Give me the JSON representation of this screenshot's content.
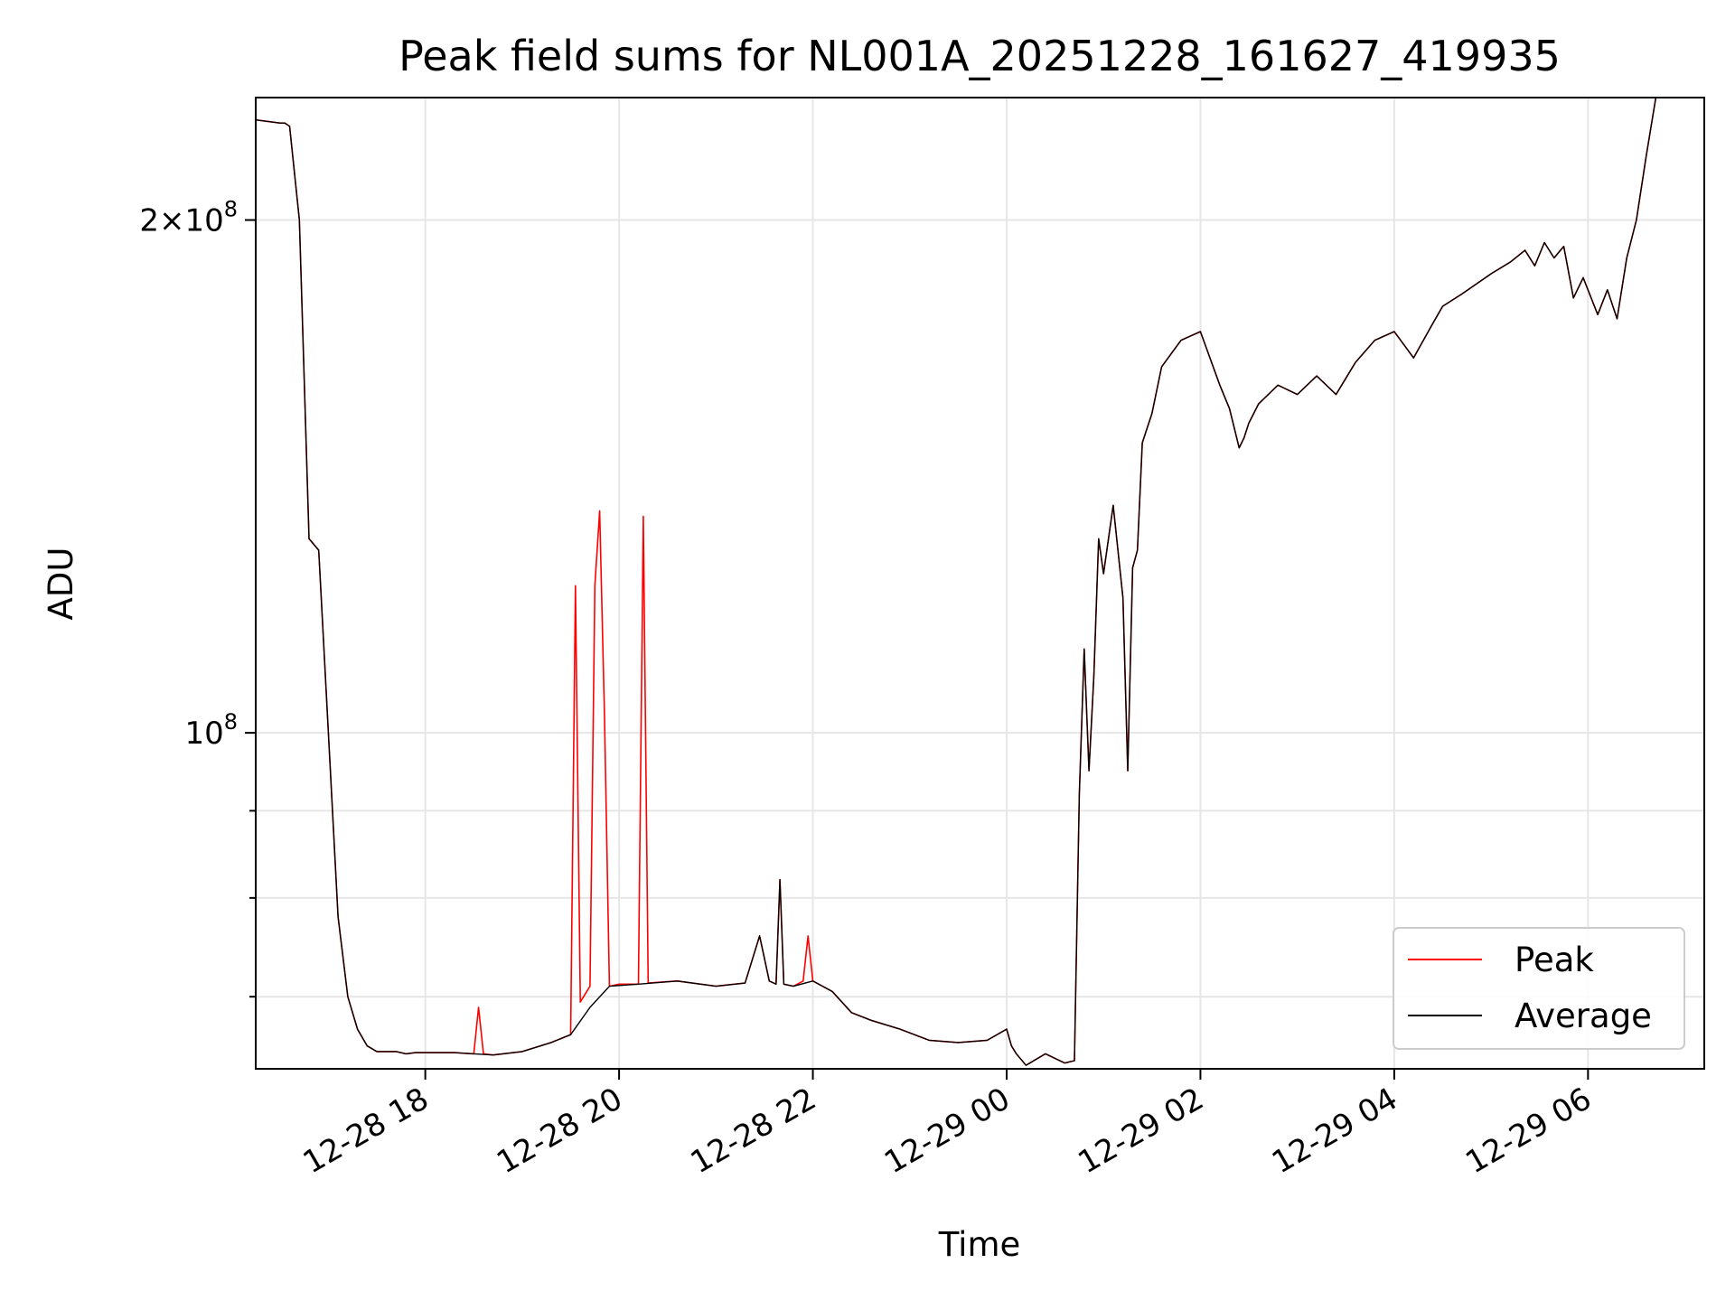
{
  "chart_data": {
    "type": "line",
    "title": "Peak field sums for NL001A_20251228_161627_419935",
    "xlabel": "Time",
    "ylabel": "ADU",
    "yscale": "log",
    "grid": true,
    "legend_position": "lower-right",
    "xlim": [
      16.25,
      31.2
    ],
    "ylim": [
      63500000,
      236000000
    ],
    "x_ticks": [
      {
        "value": 18,
        "label": "12-28 18"
      },
      {
        "value": 20,
        "label": "12-28 20"
      },
      {
        "value": 22,
        "label": "12-28 22"
      },
      {
        "value": 24,
        "label": "12-29 00"
      },
      {
        "value": 26,
        "label": "12-29 02"
      },
      {
        "value": 28,
        "label": "12-29 04"
      },
      {
        "value": 30,
        "label": "12-29 06"
      }
    ],
    "y_ticks": [
      {
        "value": 100000000,
        "base": "10",
        "exp": "8",
        "coef": ""
      },
      {
        "value": 200000000,
        "base": "10",
        "exp": "8",
        "coef": "2×"
      }
    ],
    "y_minor_ticks": [
      70000000,
      80000000,
      90000000
    ],
    "series": [
      {
        "name": "Average",
        "color": "#000000",
        "x": [
          16.25,
          16.5,
          16.55,
          16.6,
          16.7,
          16.8,
          16.9,
          17.0,
          17.1,
          17.2,
          17.3,
          17.4,
          17.5,
          17.6,
          17.7,
          17.8,
          17.9,
          18.1,
          18.3,
          18.5,
          18.7,
          19.0,
          19.3,
          19.5,
          19.7,
          19.9,
          20.2,
          20.6,
          21.0,
          21.3,
          21.45,
          21.55,
          21.62,
          21.66,
          21.7,
          21.8,
          22.0,
          22.2,
          22.4,
          22.6,
          22.9,
          23.2,
          23.5,
          23.8,
          24.0,
          24.05,
          24.1,
          24.2,
          24.4,
          24.6,
          24.7,
          24.75,
          24.8,
          24.85,
          24.9,
          24.95,
          25.0,
          25.1,
          25.2,
          25.25,
          25.3,
          25.35,
          25.4,
          25.5,
          25.6,
          25.8,
          26.0,
          26.2,
          26.3,
          26.4,
          26.45,
          26.5,
          26.6,
          26.8,
          27.0,
          27.2,
          27.4,
          27.6,
          27.8,
          28.0,
          28.2,
          28.4,
          28.5,
          28.7,
          29.0,
          29.2,
          29.35,
          29.45,
          29.55,
          29.65,
          29.75,
          29.85,
          29.95,
          30.1,
          30.2,
          30.3,
          30.4,
          30.5,
          30.6,
          30.7,
          30.8,
          30.9
        ],
        "values": [
          229000000,
          228000000,
          228000000,
          227000000,
          200000000,
          130000000,
          128000000,
          100000000,
          78000000,
          70000000,
          67000000,
          65500000,
          65000000,
          65000000,
          65000000,
          64800000,
          64900000,
          64900000,
          64900000,
          64800000,
          64700000,
          65000000,
          65800000,
          66500000,
          69000000,
          71000000,
          71200000,
          71500000,
          71000000,
          71300000,
          76000000,
          71500000,
          71200000,
          82000000,
          71200000,
          71000000,
          71500000,
          70500000,
          68500000,
          67800000,
          67000000,
          66000000,
          65800000,
          66000000,
          67000000,
          65500000,
          64800000,
          63800000,
          64800000,
          64000000,
          64200000,
          92000000,
          112000000,
          95000000,
          108000000,
          130000000,
          124000000,
          136000000,
          120000000,
          95000000,
          125000000,
          128000000,
          148000000,
          154000000,
          164000000,
          170000000,
          172000000,
          160000000,
          155000000,
          147000000,
          149000000,
          152000000,
          156000000,
          160000000,
          158000000,
          162000000,
          158000000,
          165000000,
          170000000,
          172000000,
          166000000,
          174000000,
          178000000,
          181000000,
          186000000,
          189000000,
          192000000,
          188000000,
          194000000,
          190000000,
          193000000,
          180000000,
          185000000,
          176000000,
          182000000,
          175000000,
          190000000,
          200000000,
          218000000,
          236000000,
          236000000,
          236000000
        ]
      },
      {
        "name": "Peak",
        "color": "#ff0000",
        "x": [
          16.25,
          16.5,
          16.55,
          16.6,
          16.7,
          16.8,
          16.9,
          17.0,
          17.1,
          17.2,
          17.3,
          17.4,
          17.5,
          17.6,
          17.7,
          17.8,
          17.9,
          18.1,
          18.3,
          18.5,
          18.55,
          18.6,
          18.7,
          19.0,
          19.3,
          19.5,
          19.55,
          19.6,
          19.7,
          19.75,
          19.8,
          19.85,
          19.9,
          20.0,
          20.2,
          20.25,
          20.3,
          20.6,
          21.0,
          21.3,
          21.45,
          21.55,
          21.62,
          21.66,
          21.7,
          21.8,
          21.9,
          21.95,
          22.0,
          22.2,
          22.4,
          22.6,
          22.9,
          23.2,
          23.5,
          23.8,
          24.0,
          24.05,
          24.1,
          24.2,
          24.4,
          24.6,
          24.7,
          24.75,
          24.8,
          24.85,
          24.9,
          24.95,
          25.0,
          25.1,
          25.2,
          25.25,
          25.3,
          25.35,
          25.4,
          25.5,
          25.6,
          25.8,
          26.0,
          26.2,
          26.3,
          26.4,
          26.45,
          26.5,
          26.6,
          26.8,
          27.0,
          27.2,
          27.4,
          27.6,
          27.8,
          28.0,
          28.2,
          28.4,
          28.5,
          28.7,
          29.0,
          29.2,
          29.35,
          29.45,
          29.55,
          29.65,
          29.75,
          29.85,
          29.95,
          30.1,
          30.2,
          30.3,
          30.4,
          30.5,
          30.6,
          30.7,
          30.8,
          30.9
        ],
        "values": [
          229000000,
          228000000,
          228000000,
          227000000,
          200000000,
          130000000,
          128000000,
          100000000,
          78000000,
          70000000,
          67000000,
          65500000,
          65000000,
          65000000,
          65000000,
          64800000,
          64900000,
          64900000,
          64900000,
          64800000,
          69000000,
          64800000,
          64700000,
          65000000,
          65800000,
          66500000,
          122000000,
          69500000,
          71000000,
          122000000,
          135000000,
          102000000,
          71000000,
          71200000,
          71200000,
          134000000,
          71300000,
          71500000,
          71000000,
          71300000,
          76000000,
          71500000,
          71200000,
          82000000,
          71200000,
          71000000,
          71500000,
          76000000,
          71500000,
          70500000,
          68500000,
          67800000,
          67000000,
          66000000,
          65800000,
          66000000,
          67000000,
          65500000,
          64800000,
          63800000,
          64800000,
          64000000,
          64200000,
          92000000,
          112000000,
          95000000,
          108000000,
          130000000,
          124000000,
          136000000,
          120000000,
          95000000,
          125000000,
          128000000,
          148000000,
          154000000,
          164000000,
          170000000,
          172000000,
          160000000,
          155000000,
          147000000,
          149000000,
          152000000,
          156000000,
          160000000,
          158000000,
          162000000,
          158000000,
          165000000,
          170000000,
          172000000,
          166000000,
          174000000,
          178000000,
          181000000,
          186000000,
          189000000,
          192000000,
          188000000,
          194000000,
          190000000,
          193000000,
          180000000,
          185000000,
          176000000,
          182000000,
          175000000,
          190000000,
          200000000,
          218000000,
          236000000,
          236000000,
          236000000
        ]
      }
    ],
    "legend": [
      {
        "name": "Peak",
        "color": "#ff0000"
      },
      {
        "name": "Average",
        "color": "#000000"
      }
    ]
  }
}
